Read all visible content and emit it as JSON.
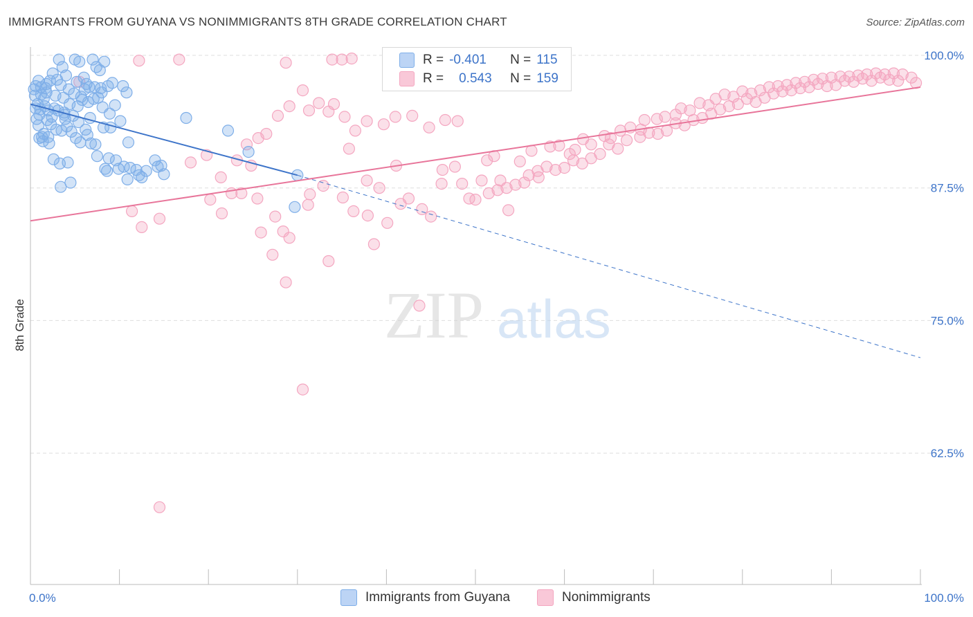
{
  "title": "IMMIGRANTS FROM GUYANA VS NONIMMIGRANTS 8TH GRADE CORRELATION CHART",
  "source": "Source: ZipAtlas.com",
  "watermark": {
    "zip": "ZIP",
    "atlas": "atlas"
  },
  "legend": {
    "r_label": "R =",
    "n_label": "N =",
    "rows": [
      {
        "r": "-0.401",
        "n": "115",
        "color": "#7eaee8"
      },
      {
        "r": "0.543",
        "n": "159",
        "color": "#f4a6c0"
      }
    ]
  },
  "chart_data": {
    "type": "scatter",
    "title": "IMMIGRANTS FROM GUYANA VS NONIMMIGRANTS 8TH GRADE CORRELATION CHART",
    "xlabel": "",
    "ylabel": "8th Grade",
    "xlim": [
      0,
      100
    ],
    "ylim": [
      50,
      102.5
    ],
    "x_tick_labels": [
      "0.0%",
      "100.0%"
    ],
    "y_ticks": [
      {
        "value": 100,
        "label": "100.0%"
      },
      {
        "value": 87.5,
        "label": "87.5%"
      },
      {
        "value": 75,
        "label": "75.0%"
      },
      {
        "value": 62.5,
        "label": "62.5%"
      }
    ],
    "grid": "horizontal dashed",
    "legend_position": "top-center",
    "series": [
      {
        "name": "Immigrants from Guyana",
        "color": "#7eaee8",
        "stroke": "#3d74c9",
        "trend": {
          "x0": 0,
          "y0": 95.4,
          "x1": 30,
          "y1": 88.7,
          "dash_to_x": 100,
          "dash_to_y": 71.5
        },
        "points": [
          [
            0.5,
            96.2
          ],
          [
            0.8,
            95.4
          ],
          [
            1.0,
            94.4
          ],
          [
            1.2,
            96.3
          ],
          [
            0.6,
            95.0
          ],
          [
            1.5,
            95.9
          ],
          [
            2.0,
            94.8
          ],
          [
            1.8,
            96.5
          ],
          [
            0.9,
            93.4
          ],
          [
            1.3,
            92.3
          ],
          [
            2.2,
            97.6
          ],
          [
            2.5,
            98.3
          ],
          [
            1.7,
            96.9
          ],
          [
            3.0,
            97.7
          ],
          [
            3.2,
            99.6
          ],
          [
            3.6,
            98.9
          ],
          [
            4.0,
            98.1
          ],
          [
            3.4,
            97.2
          ],
          [
            4.3,
            96.8
          ],
          [
            5.0,
            99.6
          ],
          [
            5.2,
            97.5
          ],
          [
            5.5,
            99.4
          ],
          [
            6.0,
            97.9
          ],
          [
            6.3,
            97.3
          ],
          [
            7.0,
            99.6
          ],
          [
            7.4,
            98.9
          ],
          [
            7.8,
            98.6
          ],
          [
            8.3,
            99.4
          ],
          [
            8.0,
            96.5
          ],
          [
            8.7,
            97.1
          ],
          [
            9.2,
            97.4
          ],
          [
            10.4,
            97.1
          ],
          [
            10.8,
            96.5
          ],
          [
            1.1,
            94.9
          ],
          [
            1.6,
            95.2
          ],
          [
            2.7,
            95.0
          ],
          [
            3.1,
            94.8
          ],
          [
            3.8,
            94.6
          ],
          [
            4.4,
            95.4
          ],
          [
            4.8,
            94.3
          ],
          [
            5.3,
            95.2
          ],
          [
            5.8,
            95.8
          ],
          [
            6.5,
            95.6
          ],
          [
            7.1,
            95.9
          ],
          [
            7.6,
            96.0
          ],
          [
            8.1,
            95.1
          ],
          [
            2.3,
            93.5
          ],
          [
            2.9,
            93.0
          ],
          [
            3.5,
            92.9
          ],
          [
            4.1,
            93.3
          ],
          [
            4.6,
            92.8
          ],
          [
            5.1,
            92.2
          ],
          [
            5.6,
            91.8
          ],
          [
            6.2,
            93.0
          ],
          [
            6.8,
            91.7
          ],
          [
            7.3,
            91.6
          ],
          [
            9.5,
            95.3
          ],
          [
            8.9,
            94.5
          ],
          [
            1.4,
            91.9
          ],
          [
            2.1,
            91.7
          ],
          [
            2.6,
            90.2
          ],
          [
            3.3,
            89.8
          ],
          [
            4.2,
            89.9
          ],
          [
            7.5,
            90.5
          ],
          [
            8.4,
            89.3
          ],
          [
            8.6,
            89.1
          ],
          [
            9.6,
            90.1
          ],
          [
            9.9,
            89.3
          ],
          [
            10.5,
            89.5
          ],
          [
            10.9,
            88.3
          ],
          [
            11.2,
            89.4
          ],
          [
            11.9,
            89.2
          ],
          [
            12.5,
            88.5
          ],
          [
            13.0,
            89.1
          ],
          [
            14.3,
            89.5
          ],
          [
            15.0,
            88.8
          ],
          [
            14.7,
            89.6
          ],
          [
            3.4,
            87.6
          ],
          [
            4.5,
            88.0
          ],
          [
            0.7,
            94.0
          ],
          [
            1.9,
            93.9
          ],
          [
            2.4,
            94.2
          ],
          [
            3.9,
            94.0
          ],
          [
            5.4,
            93.7
          ],
          [
            6.7,
            94.1
          ],
          [
            8.2,
            93.2
          ],
          [
            9.0,
            93.2
          ],
          [
            11.0,
            91.8
          ],
          [
            14.0,
            90.1
          ],
          [
            17.5,
            94.1
          ],
          [
            22.2,
            92.9
          ],
          [
            24.5,
            90.9
          ],
          [
            30.0,
            88.7
          ],
          [
            29.7,
            85.7
          ],
          [
            1.2,
            97.0
          ],
          [
            1.8,
            97.3
          ],
          [
            2.8,
            96.2
          ],
          [
            3.7,
            96.0
          ],
          [
            4.9,
            96.4
          ],
          [
            5.7,
            96.1
          ],
          [
            6.1,
            96.8
          ],
          [
            6.6,
            97.0
          ],
          [
            7.2,
            97.0
          ],
          [
            7.9,
            96.9
          ],
          [
            0.4,
            96.8
          ],
          [
            0.6,
            97.1
          ],
          [
            0.9,
            97.6
          ],
          [
            1.0,
            92.2
          ],
          [
            1.5,
            92.6
          ],
          [
            2.0,
            92.3
          ],
          [
            3.8,
            94.4
          ],
          [
            6.4,
            92.5
          ],
          [
            8.8,
            90.3
          ],
          [
            10.1,
            93.8
          ],
          [
            12.2,
            88.7
          ]
        ]
      },
      {
        "name": "Nonimmigrants",
        "color": "#f4a6c0",
        "stroke": "#e8759a",
        "trend": {
          "x0": 0,
          "y0": 84.4,
          "x1": 100,
          "y1": 97.0
        },
        "points": [
          [
            12.2,
            99.5
          ],
          [
            16.7,
            99.6
          ],
          [
            28.7,
            99.3
          ],
          [
            33.9,
            99.6
          ],
          [
            35.0,
            99.6
          ],
          [
            36.1,
            99.7
          ],
          [
            5.5,
            97.5
          ],
          [
            11.4,
            85.3
          ],
          [
            21.5,
            85.1
          ],
          [
            23.7,
            87.0
          ],
          [
            24.8,
            89.6
          ],
          [
            25.5,
            86.5
          ],
          [
            27.5,
            84.8
          ],
          [
            28.4,
            83.4
          ],
          [
            29.1,
            82.8
          ],
          [
            31.4,
            86.9
          ],
          [
            32.9,
            87.7
          ],
          [
            35.1,
            86.6
          ],
          [
            36.3,
            85.3
          ],
          [
            37.8,
            88.2
          ],
          [
            39.2,
            87.5
          ],
          [
            40.1,
            84.2
          ],
          [
            41.6,
            86.0
          ],
          [
            42.5,
            86.5
          ],
          [
            44.0,
            85.5
          ],
          [
            45.0,
            84.8
          ],
          [
            46.3,
            89.2
          ],
          [
            47.7,
            89.5
          ],
          [
            48.5,
            87.9
          ],
          [
            50.0,
            86.4
          ],
          [
            50.7,
            88.2
          ],
          [
            51.3,
            90.1
          ],
          [
            52.8,
            88.2
          ],
          [
            53.7,
            85.4
          ],
          [
            55.0,
            90.0
          ],
          [
            56.3,
            91.0
          ],
          [
            57.1,
            88.5
          ],
          [
            58.4,
            91.4
          ],
          [
            59.4,
            91.5
          ],
          [
            60.6,
            90.7
          ],
          [
            61.2,
            91.1
          ],
          [
            62.1,
            92.1
          ],
          [
            63.0,
            91.6
          ],
          [
            64.5,
            92.4
          ],
          [
            65.2,
            92.2
          ],
          [
            66.3,
            92.9
          ],
          [
            67.4,
            93.2
          ],
          [
            68.6,
            93.0
          ],
          [
            69.0,
            93.9
          ],
          [
            70.4,
            94.0
          ],
          [
            71.3,
            94.2
          ],
          [
            72.5,
            94.4
          ],
          [
            73.1,
            95.0
          ],
          [
            74.1,
            94.8
          ],
          [
            75.2,
            95.5
          ],
          [
            76.2,
            95.3
          ],
          [
            77.0,
            95.9
          ],
          [
            78.0,
            96.3
          ],
          [
            79.0,
            96.1
          ],
          [
            80.0,
            96.6
          ],
          [
            81.0,
            96.4
          ],
          [
            82.0,
            96.7
          ],
          [
            83.0,
            97.0
          ],
          [
            84.0,
            97.1
          ],
          [
            85.0,
            97.2
          ],
          [
            86.0,
            97.4
          ],
          [
            87.0,
            97.5
          ],
          [
            88.0,
            97.7
          ],
          [
            89.0,
            97.8
          ],
          [
            90.0,
            97.9
          ],
          [
            91.0,
            98.0
          ],
          [
            92.0,
            98.0
          ],
          [
            93.0,
            98.1
          ],
          [
            94.0,
            98.2
          ],
          [
            95.0,
            98.3
          ],
          [
            96.0,
            98.2
          ],
          [
            97.0,
            98.3
          ],
          [
            98.0,
            98.2
          ],
          [
            99.0,
            97.9
          ],
          [
            99.5,
            97.4
          ],
          [
            97.5,
            97.6
          ],
          [
            96.5,
            97.7
          ],
          [
            95.5,
            97.9
          ],
          [
            94.5,
            97.6
          ],
          [
            93.5,
            97.8
          ],
          [
            92.5,
            97.5
          ],
          [
            91.5,
            97.6
          ],
          [
            90.5,
            97.2
          ],
          [
            89.5,
            97.1
          ],
          [
            88.5,
            97.3
          ],
          [
            87.5,
            97.0
          ],
          [
            86.5,
            96.9
          ],
          [
            85.5,
            96.7
          ],
          [
            84.5,
            96.6
          ],
          [
            83.5,
            96.4
          ],
          [
            82.5,
            96.0
          ],
          [
            81.5,
            95.6
          ],
          [
            80.5,
            95.9
          ],
          [
            79.5,
            95.4
          ],
          [
            78.5,
            95.2
          ],
          [
            77.5,
            94.9
          ],
          [
            76.5,
            94.5
          ],
          [
            75.5,
            94.1
          ],
          [
            74.5,
            93.9
          ],
          [
            73.5,
            93.4
          ],
          [
            72.5,
            93.6
          ],
          [
            71.5,
            92.9
          ],
          [
            70.5,
            92.6
          ],
          [
            69.5,
            92.7
          ],
          [
            68.5,
            92.3
          ],
          [
            67.0,
            92.0
          ],
          [
            66.0,
            91.2
          ],
          [
            65.0,
            91.6
          ],
          [
            64.0,
            90.7
          ],
          [
            63.0,
            90.3
          ],
          [
            62.0,
            89.8
          ],
          [
            61.0,
            90.1
          ],
          [
            60.0,
            89.4
          ],
          [
            59.0,
            89.2
          ],
          [
            58.0,
            89.5
          ],
          [
            57.0,
            89.1
          ],
          [
            56.0,
            88.7
          ],
          [
            55.5,
            88.0
          ],
          [
            54.5,
            87.8
          ],
          [
            53.5,
            87.5
          ],
          [
            52.5,
            87.3
          ],
          [
            51.5,
            87.0
          ],
          [
            48.0,
            93.8
          ],
          [
            46.6,
            93.9
          ],
          [
            44.8,
            93.2
          ],
          [
            42.9,
            94.3
          ],
          [
            41.0,
            94.2
          ],
          [
            39.7,
            93.5
          ],
          [
            37.8,
            93.8
          ],
          [
            36.5,
            92.9
          ],
          [
            35.3,
            94.2
          ],
          [
            34.1,
            95.4
          ],
          [
            33.5,
            94.7
          ],
          [
            32.4,
            95.5
          ],
          [
            31.3,
            94.8
          ],
          [
            30.6,
            96.7
          ],
          [
            29.1,
            95.2
          ],
          [
            27.8,
            94.3
          ],
          [
            26.5,
            92.6
          ],
          [
            25.6,
            92.2
          ],
          [
            24.3,
            91.6
          ],
          [
            23.2,
            90.1
          ],
          [
            22.6,
            87.0
          ],
          [
            21.4,
            88.5
          ],
          [
            20.2,
            86.4
          ],
          [
            19.8,
            90.6
          ],
          [
            18.0,
            89.9
          ],
          [
            14.5,
            84.6
          ],
          [
            12.5,
            83.8
          ],
          [
            28.7,
            78.6
          ],
          [
            33.5,
            80.6
          ],
          [
            43.7,
            76.4
          ],
          [
            38.6,
            82.2
          ],
          [
            30.6,
            68.5
          ],
          [
            14.5,
            57.4
          ],
          [
            46.2,
            87.9
          ],
          [
            49.3,
            86.5
          ],
          [
            52.1,
            90.5
          ],
          [
            35.8,
            91.2
          ],
          [
            41.1,
            89.6
          ],
          [
            25.9,
            83.3
          ],
          [
            27.2,
            81.2
          ],
          [
            31.2,
            85.9
          ],
          [
            37.9,
            84.9
          ]
        ]
      }
    ]
  }
}
